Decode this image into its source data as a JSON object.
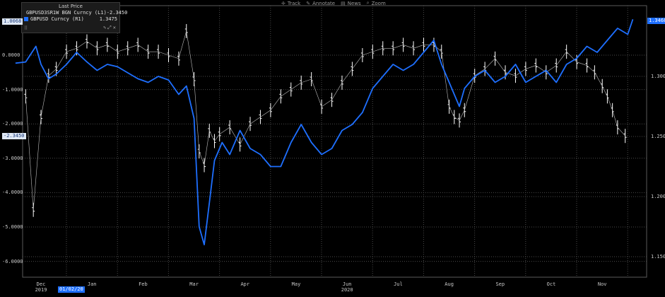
{
  "toolbar": {
    "items": [
      {
        "label": "Track",
        "icon": "track-icon"
      },
      {
        "label": "Annotate",
        "icon": "annotate-icon"
      },
      {
        "label": "News",
        "icon": "news-icon"
      },
      {
        "label": "Zoom",
        "icon": "zoom-icon"
      }
    ]
  },
  "legend": {
    "title": "Last Price",
    "series": [
      {
        "name": "GBPUSD3SR1W BGN Curncy (L1)",
        "value": "-2.3450",
        "color": "#ffffff"
      },
      {
        "name": "GBPUSD Curncy  (R1)",
        "value": "1.3475",
        "color": "#1e6fff"
      }
    ]
  },
  "badges": {
    "left_top": "1.0068",
    "left_current": "-2.3450",
    "right_top": "1.3468",
    "date_marker": "01/02/20"
  },
  "colors": {
    "background": "#000000",
    "grid": "#4a4a4a",
    "white_series": "#ffffff",
    "blue_series": "#1e6fff"
  },
  "chart_data": {
    "type": "line",
    "grid": true,
    "legend_position": "top-left",
    "x_tick_labels": [
      "Dec",
      "Jan",
      "Feb",
      "Mar",
      "Apr",
      "May",
      "Jun",
      "Jul",
      "Aug",
      "Sep",
      "Oct",
      "Nov"
    ],
    "x_year_labels": [
      {
        "month": "Dec",
        "year": "2019"
      },
      {
        "month": "Jun",
        "year": "2020"
      }
    ],
    "left_axis": {
      "ticks": [
        0.0,
        -1.0,
        -2.0,
        -3.0,
        -4.0,
        -5.0,
        -6.0
      ],
      "tick_labels": [
        "0.0000",
        "-1.0000",
        "-2.0000",
        "-3.0000",
        "-4.0000",
        "-5.0000",
        "-6.0000"
      ]
    },
    "right_axis": {
      "ticks": [
        1.3,
        1.25,
        1.2,
        1.15
      ],
      "tick_labels": [
        "1.3000",
        "1.2500",
        "1.2000",
        "1.1500"
      ]
    },
    "series": [
      {
        "name": "GBPUSD3SR1W BGN Curncy (L1)",
        "axis": "left",
        "type": "bar-ohlc",
        "x_month": [
          -0.3,
          -0.15,
          0.0,
          0.15,
          0.3,
          0.5,
          0.7,
          0.9,
          1.1,
          1.3,
          1.5,
          1.7,
          1.9,
          2.1,
          2.3,
          2.5,
          2.7,
          2.85,
          3.0,
          3.1,
          3.2,
          3.3,
          3.4,
          3.5,
          3.7,
          3.9,
          4.1,
          4.3,
          4.5,
          4.7,
          4.9,
          5.1,
          5.3,
          5.5,
          5.7,
          5.9,
          6.1,
          6.3,
          6.5,
          6.7,
          6.9,
          7.1,
          7.3,
          7.5,
          7.7,
          7.85,
          8.0,
          8.1,
          8.2,
          8.3,
          8.5,
          8.7,
          8.9,
          9.1,
          9.3,
          9.5,
          9.7,
          9.9,
          10.1,
          10.3,
          10.5,
          10.7,
          10.85,
          11.0,
          11.1,
          11.2,
          11.3,
          11.45
        ],
        "values": [
          -1.2,
          -4.5,
          -1.8,
          -0.6,
          -0.4,
          0.1,
          0.2,
          0.4,
          0.2,
          0.3,
          0.1,
          0.2,
          0.3,
          0.1,
          0.1,
          0.0,
          -0.1,
          0.7,
          -0.7,
          -2.8,
          -3.2,
          -2.2,
          -2.5,
          -2.3,
          -2.1,
          -2.6,
          -2.0,
          -1.8,
          -1.6,
          -1.2,
          -1.0,
          -0.8,
          -0.7,
          -1.5,
          -1.3,
          -0.8,
          -0.4,
          0.0,
          0.1,
          0.2,
          0.2,
          0.3,
          0.2,
          0.3,
          0.3,
          0.1,
          -1.5,
          -1.8,
          -1.9,
          -1.6,
          -0.6,
          -0.4,
          -0.1,
          -0.5,
          -0.6,
          -0.4,
          -0.3,
          -0.5,
          -0.3,
          0.1,
          -0.2,
          -0.3,
          -0.5,
          -0.9,
          -1.2,
          -1.6,
          -2.1,
          -2.35
        ]
      },
      {
        "name": "GBPUSD Curncy  (R1)",
        "axis": "right",
        "type": "line",
        "x_month": [
          -0.5,
          -0.3,
          -0.1,
          0.0,
          0.15,
          0.3,
          0.5,
          0.7,
          0.9,
          1.1,
          1.3,
          1.5,
          1.7,
          1.9,
          2.1,
          2.3,
          2.5,
          2.7,
          2.85,
          3.0,
          3.1,
          3.2,
          3.3,
          3.4,
          3.55,
          3.7,
          3.9,
          4.1,
          4.3,
          4.5,
          4.7,
          4.9,
          5.1,
          5.3,
          5.5,
          5.7,
          5.9,
          6.1,
          6.3,
          6.5,
          6.7,
          6.9,
          7.1,
          7.3,
          7.5,
          7.7,
          7.85,
          8.0,
          8.1,
          8.2,
          8.3,
          8.5,
          8.7,
          8.9,
          9.1,
          9.3,
          9.5,
          9.7,
          9.9,
          10.1,
          10.3,
          10.5,
          10.7,
          10.9,
          11.1,
          11.3,
          11.5,
          11.6
        ],
        "values": [
          1.311,
          1.312,
          1.325,
          1.31,
          1.298,
          1.302,
          1.31,
          1.32,
          1.312,
          1.305,
          1.31,
          1.308,
          1.303,
          1.298,
          1.295,
          1.3,
          1.297,
          1.285,
          1.292,
          1.265,
          1.175,
          1.16,
          1.195,
          1.23,
          1.245,
          1.235,
          1.255,
          1.24,
          1.235,
          1.225,
          1.225,
          1.245,
          1.26,
          1.245,
          1.235,
          1.24,
          1.255,
          1.26,
          1.27,
          1.29,
          1.3,
          1.31,
          1.305,
          1.31,
          1.32,
          1.33,
          1.31,
          1.295,
          1.285,
          1.275,
          1.29,
          1.3,
          1.305,
          1.295,
          1.3,
          1.31,
          1.295,
          1.3,
          1.305,
          1.295,
          1.31,
          1.315,
          1.325,
          1.32,
          1.33,
          1.34,
          1.335,
          1.3475
        ]
      }
    ]
  }
}
